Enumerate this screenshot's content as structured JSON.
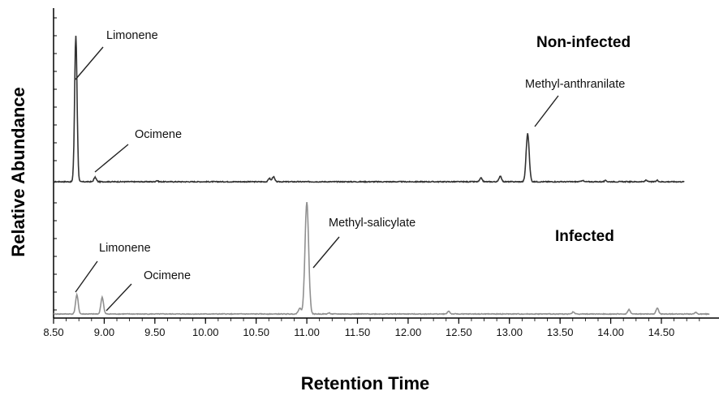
{
  "chart_data": {
    "type": "line",
    "xlabel": "Retention Time",
    "ylabel": "Relative Abundance",
    "xlim": [
      8.5,
      14.98
    ],
    "x_ticks": [
      "8.50",
      "9.00",
      "9.50",
      "10.00",
      "10.50",
      "11.00",
      "11.50",
      "12.00",
      "12.50",
      "13.00",
      "13.50",
      "14.00",
      "14.50"
    ],
    "series": [
      {
        "name": "Non-infected",
        "color": "#333333",
        "x_range": [
          8.5,
          14.73
        ],
        "peaks": [
          {
            "x": 8.72,
            "height": 1.0,
            "width": 0.012
          },
          {
            "x": 8.91,
            "height": 0.03,
            "width": 0.012
          },
          {
            "x": 9.52,
            "height": 0.008,
            "width": 0.01
          },
          {
            "x": 10.63,
            "height": 0.025,
            "width": 0.01
          },
          {
            "x": 10.67,
            "height": 0.035,
            "width": 0.012
          },
          {
            "x": 12.72,
            "height": 0.025,
            "width": 0.012
          },
          {
            "x": 12.91,
            "height": 0.04,
            "width": 0.012
          },
          {
            "x": 13.18,
            "height": 0.33,
            "width": 0.015
          },
          {
            "x": 13.72,
            "height": 0.01,
            "width": 0.01
          },
          {
            "x": 13.95,
            "height": 0.008,
            "width": 0.01
          },
          {
            "x": 14.35,
            "height": 0.012,
            "width": 0.01
          },
          {
            "x": 14.46,
            "height": 0.01,
            "width": 0.01
          }
        ],
        "annotations": [
          {
            "label": "Limonene",
            "x": 8.72
          },
          {
            "label": "Ocimene",
            "x": 8.91
          },
          {
            "label": "Methyl-anthranilate",
            "x": 13.18
          }
        ]
      },
      {
        "name": "Infected",
        "color": "#909090",
        "x_range": [
          8.5,
          14.98
        ],
        "peaks": [
          {
            "x": 8.73,
            "height": 0.17,
            "width": 0.013
          },
          {
            "x": 8.98,
            "height": 0.15,
            "width": 0.013
          },
          {
            "x": 10.93,
            "height": 0.05,
            "width": 0.015
          },
          {
            "x": 11.0,
            "height": 1.0,
            "width": 0.018
          },
          {
            "x": 11.22,
            "height": 0.01,
            "width": 0.01
          },
          {
            "x": 12.4,
            "height": 0.025,
            "width": 0.012
          },
          {
            "x": 13.63,
            "height": 0.02,
            "width": 0.01
          },
          {
            "x": 14.18,
            "height": 0.04,
            "width": 0.012
          },
          {
            "x": 14.46,
            "height": 0.055,
            "width": 0.012
          },
          {
            "x": 14.84,
            "height": 0.015,
            "width": 0.01
          }
        ],
        "annotations": [
          {
            "label": "Limonene",
            "x": 8.73
          },
          {
            "label": "Ocimene",
            "x": 8.98
          },
          {
            "label": "Methyl-salicylate",
            "x": 11.0
          }
        ]
      }
    ],
    "grid": false,
    "legend": "none"
  }
}
